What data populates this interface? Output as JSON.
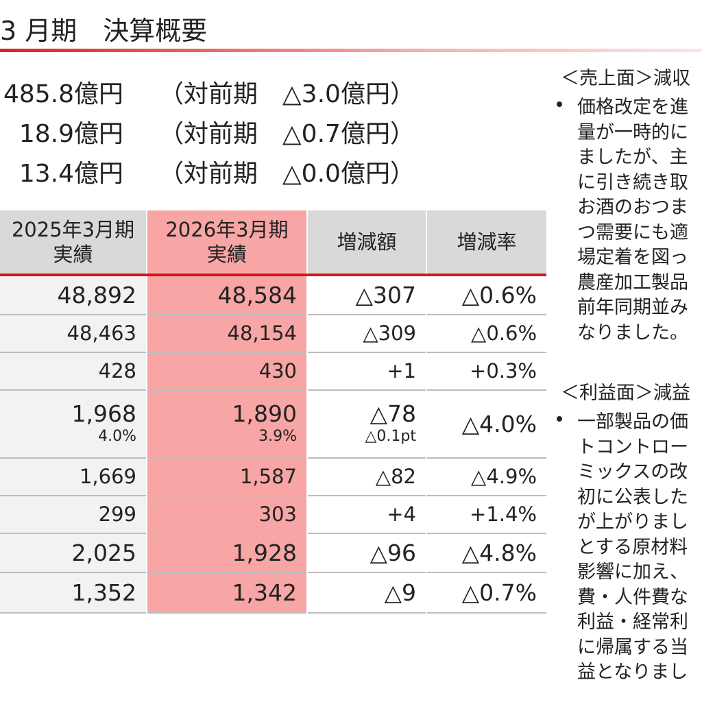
{
  "title": "3 月期　決算概要",
  "summary": [
    {
      "value": "485.8億円",
      "change": "（対前期　△3.0億円）"
    },
    {
      "value": "18.9億円",
      "change": "（対前期　△0.7億円）"
    },
    {
      "value": "13.4億円",
      "change": "（対前期　△0.0億円）"
    }
  ],
  "table": {
    "header": [
      [
        "2025年3月期",
        "実績"
      ],
      [
        "2026年3月期",
        "実績"
      ],
      [
        "増減額"
      ],
      [
        "増減率"
      ]
    ],
    "rows": [
      [
        [
          "48,892"
        ],
        [
          "48,584"
        ],
        [
          "△307"
        ],
        [
          "△0.6%"
        ]
      ],
      [
        [
          "48,463"
        ],
        [
          "48,154"
        ],
        [
          "△309"
        ],
        [
          "△0.6%"
        ]
      ],
      [
        [
          "428"
        ],
        [
          "430"
        ],
        [
          "+1"
        ],
        [
          "+0.3%"
        ]
      ],
      [
        [
          "1,968",
          "4.0%"
        ],
        [
          "1,890",
          "3.9%"
        ],
        [
          "△78",
          "△0.1pt"
        ],
        [
          "△4.0%"
        ]
      ],
      [
        [
          "1,669"
        ],
        [
          "1,587"
        ],
        [
          "△82"
        ],
        [
          "△4.9%"
        ]
      ],
      [
        [
          "299"
        ],
        [
          "303"
        ],
        [
          "+4"
        ],
        [
          "+1.4%"
        ]
      ],
      [
        [
          "2,025"
        ],
        [
          "1,928"
        ],
        [
          "△96"
        ],
        [
          "△4.8%"
        ]
      ],
      [
        [
          "1,352"
        ],
        [
          "1,342"
        ],
        [
          "△9"
        ],
        [
          "△0.7%"
        ]
      ]
    ]
  },
  "notes": [
    {
      "heading": "＜売上面＞減収",
      "lines": [
        "価格改定を進",
        "量が一時的に",
        "ましたが、主",
        "に引き続き取",
        "お酒のおつま",
        "つ需要にも適",
        "場定着を図っ",
        "農産加工製品",
        "前年同期並み",
        "なりました。"
      ]
    },
    {
      "heading": "＜利益面＞減益",
      "lines": [
        "一部製品の価",
        "トコントロー",
        "ミックスの改",
        "初に公表した",
        "が上がりまし",
        "とする原材料",
        "影響に加え、",
        "費・人件費な",
        "利益・経常利",
        "に帰属する当",
        "益となりまし"
      ]
    }
  ]
}
